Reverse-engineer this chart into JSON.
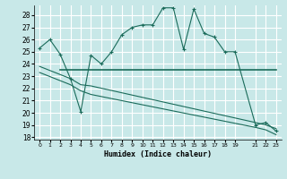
{
  "xlabel": "Humidex (Indice chaleur)",
  "background_color": "#c8e8e8",
  "grid_color": "#ffffff",
  "line_color": "#1a6b5a",
  "xlim": [
    -0.5,
    23.5
  ],
  "ylim": [
    17.8,
    28.8
  ],
  "xticks": [
    0,
    1,
    2,
    3,
    4,
    5,
    6,
    7,
    8,
    9,
    10,
    11,
    12,
    13,
    14,
    15,
    16,
    17,
    18,
    19,
    21,
    22,
    23
  ],
  "yticks": [
    18,
    19,
    20,
    21,
    22,
    23,
    24,
    25,
    26,
    27,
    28
  ],
  "line1_x": [
    0,
    1,
    2,
    3,
    4,
    5,
    6,
    7,
    8,
    9,
    10,
    11,
    12,
    13,
    14,
    15,
    16,
    17,
    18,
    19,
    21,
    22,
    23
  ],
  "line1_y": [
    25.3,
    26.0,
    24.8,
    22.8,
    20.1,
    24.7,
    24.0,
    25.0,
    26.4,
    27.0,
    27.2,
    27.2,
    28.6,
    28.6,
    25.2,
    28.5,
    26.5,
    26.2,
    25.0,
    25.0,
    19.0,
    19.2,
    18.5
  ],
  "line2_x": [
    2,
    19,
    21,
    22,
    23
  ],
  "line2_y": [
    23.5,
    23.5,
    23.5,
    23.5,
    23.5
  ],
  "line3_x": [
    0,
    3,
    4,
    5,
    21,
    22,
    23
  ],
  "line3_y": [
    23.8,
    22.8,
    22.3,
    22.2,
    19.2,
    19.0,
    18.7
  ],
  "line4_x": [
    0,
    3,
    4,
    5,
    21,
    22,
    23
  ],
  "line4_y": [
    23.3,
    22.3,
    21.8,
    21.5,
    18.8,
    18.6,
    18.2
  ]
}
